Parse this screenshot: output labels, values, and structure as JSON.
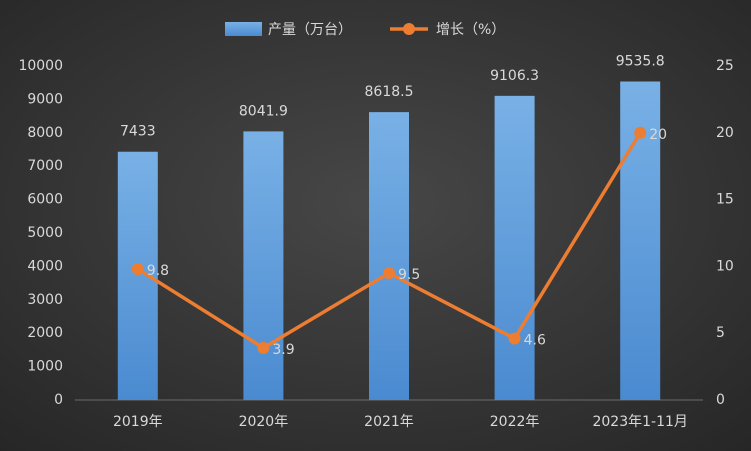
{
  "chart_data": {
    "type": "bar",
    "categories": [
      "2019年",
      "2020年",
      "2021年",
      "2022年",
      "2023年1-11月"
    ],
    "series": [
      {
        "name": "产量（万台）",
        "color": "#5b9bd5",
        "values": [
          7433,
          8041.9,
          8618.5,
          9106.3,
          9535.8
        ]
      },
      {
        "name": "增长（%）",
        "color": "#ed7d31",
        "type": "line",
        "axis": "y2",
        "values": [
          9.8,
          3.9,
          9.5,
          4.6,
          20
        ]
      }
    ],
    "ylim": [
      0,
      10000
    ],
    "yticks": [
      0,
      1000,
      2000,
      3000,
      4000,
      5000,
      6000,
      7000,
      8000,
      9000,
      10000
    ],
    "y2lim": [
      0,
      25
    ],
    "y2ticks": [
      0,
      5,
      10,
      15,
      20,
      25
    ],
    "legend": "top",
    "grid": false
  }
}
